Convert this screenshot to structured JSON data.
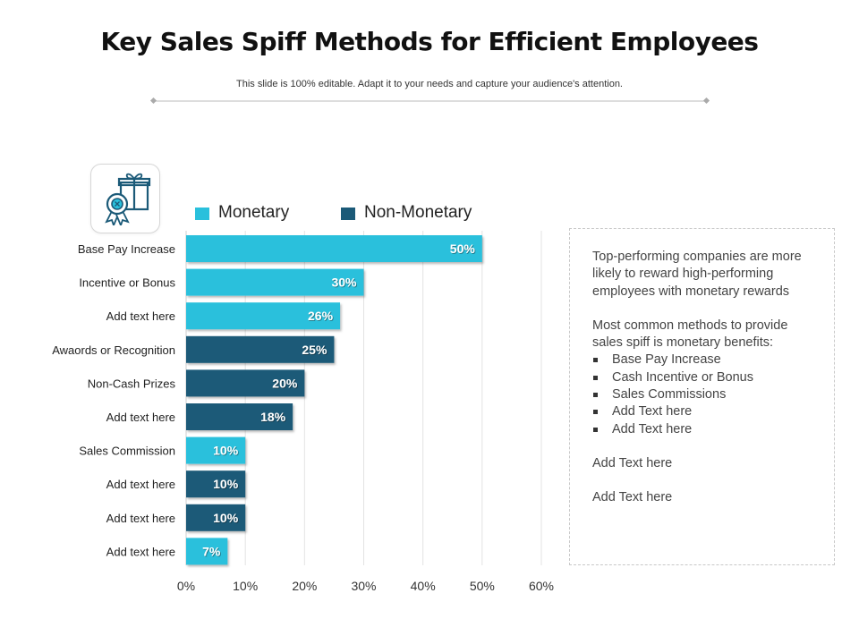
{
  "slide": {
    "title": "Key Sales Spiff Methods for Efficient Employees",
    "subtitle": "This slide is 100% editable. Adapt it to your needs and capture your audience's attention.",
    "icon": "gift-box-award-icon"
  },
  "colors": {
    "monetary": "#29c0dc",
    "non_monetary": "#1b5a78",
    "grid": "#e3e3e3",
    "axis_text": "#333333"
  },
  "chart_data": {
    "type": "bar",
    "orientation": "horizontal",
    "legend": [
      "Monetary",
      "Non-Monetary"
    ],
    "legend_position": "top",
    "categories": [
      "Base Pay Increase",
      "Incentive or Bonus",
      "Add text here",
      "Awaords or Recognition",
      "Non-Cash Prizes",
      "Add text here",
      "Sales Commission",
      "Add text here",
      "Add text here",
      "Add text here"
    ],
    "values": [
      50,
      30,
      26,
      25,
      20,
      18,
      10,
      10,
      10,
      7
    ],
    "labels": [
      "50%",
      "30%",
      "26%",
      "25%",
      "20%",
      "18%",
      "10%",
      "10%",
      "10%",
      "7%"
    ],
    "series_of_bar": [
      "Monetary",
      "Monetary",
      "Monetary",
      "Non-Monetary",
      "Non-Monetary",
      "Non-Monetary",
      "Monetary",
      "Non-Monetary",
      "Non-Monetary",
      "Monetary"
    ],
    "xlim": [
      0,
      60
    ],
    "xticks": [
      0,
      10,
      20,
      30,
      40,
      50,
      60
    ],
    "xtick_labels": [
      "0%",
      "10%",
      "20%",
      "30%",
      "40%",
      "50%",
      "60%"
    ],
    "grid": true,
    "xlabel": "",
    "ylabel": ""
  },
  "info": {
    "intro": "Top-performing companies are more likely to reward high-performing employees with monetary rewards",
    "methods_heading": "Most common methods to provide sales spiff is monetary benefits:",
    "bullets": [
      "Base Pay Increase",
      "Cash Incentive or Bonus",
      "Sales Commissions",
      "Add Text here",
      "Add Text here"
    ],
    "extra_1": "Add Text here",
    "extra_2": "Add Text here"
  }
}
